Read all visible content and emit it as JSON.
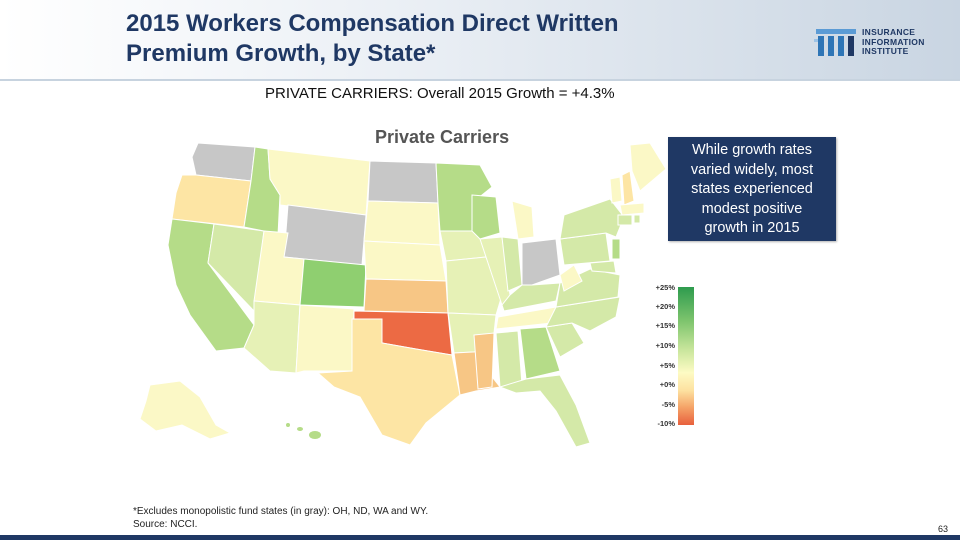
{
  "slide": {
    "title_line1": "2015 Workers Compensation Direct Written",
    "title_line2": "Premium Growth, by State*",
    "subtitle": "PRIVATE CARRIERS: Overall 2015 Growth = +4.3%",
    "page_number": "63"
  },
  "logo": {
    "line1": "INSURANCE",
    "line2": "INFORMATION",
    "line3": "INSTITUTE"
  },
  "map": {
    "title": "Private Carriers",
    "colors": {
      "gray": "#c7c7c7",
      "green_dark": "#8fcf70",
      "green_mid": "#b5dc88",
      "green_light": "#d4e9a8",
      "yellow_green": "#e6f1b6",
      "pale_yellow": "#fbf8c6",
      "light_orange": "#fde5a4",
      "orange": "#f7c685",
      "red_orange": "#ec6a44"
    }
  },
  "callout": {
    "line1": "While growth rates",
    "line2": "varied widely, most",
    "line3": "states experienced",
    "line4": "modest positive",
    "line5": "growth in 2015"
  },
  "legend": {
    "labels": [
      "+25%",
      "+20%",
      "+15%",
      "+10%",
      "+5%",
      "+0%",
      "-5%",
      "-10%"
    ]
  },
  "footnote": {
    "line1": "*Excludes monopolistic fund states (in gray): OH, ND, WA and WY.",
    "line2": "Source: NCCI."
  }
}
